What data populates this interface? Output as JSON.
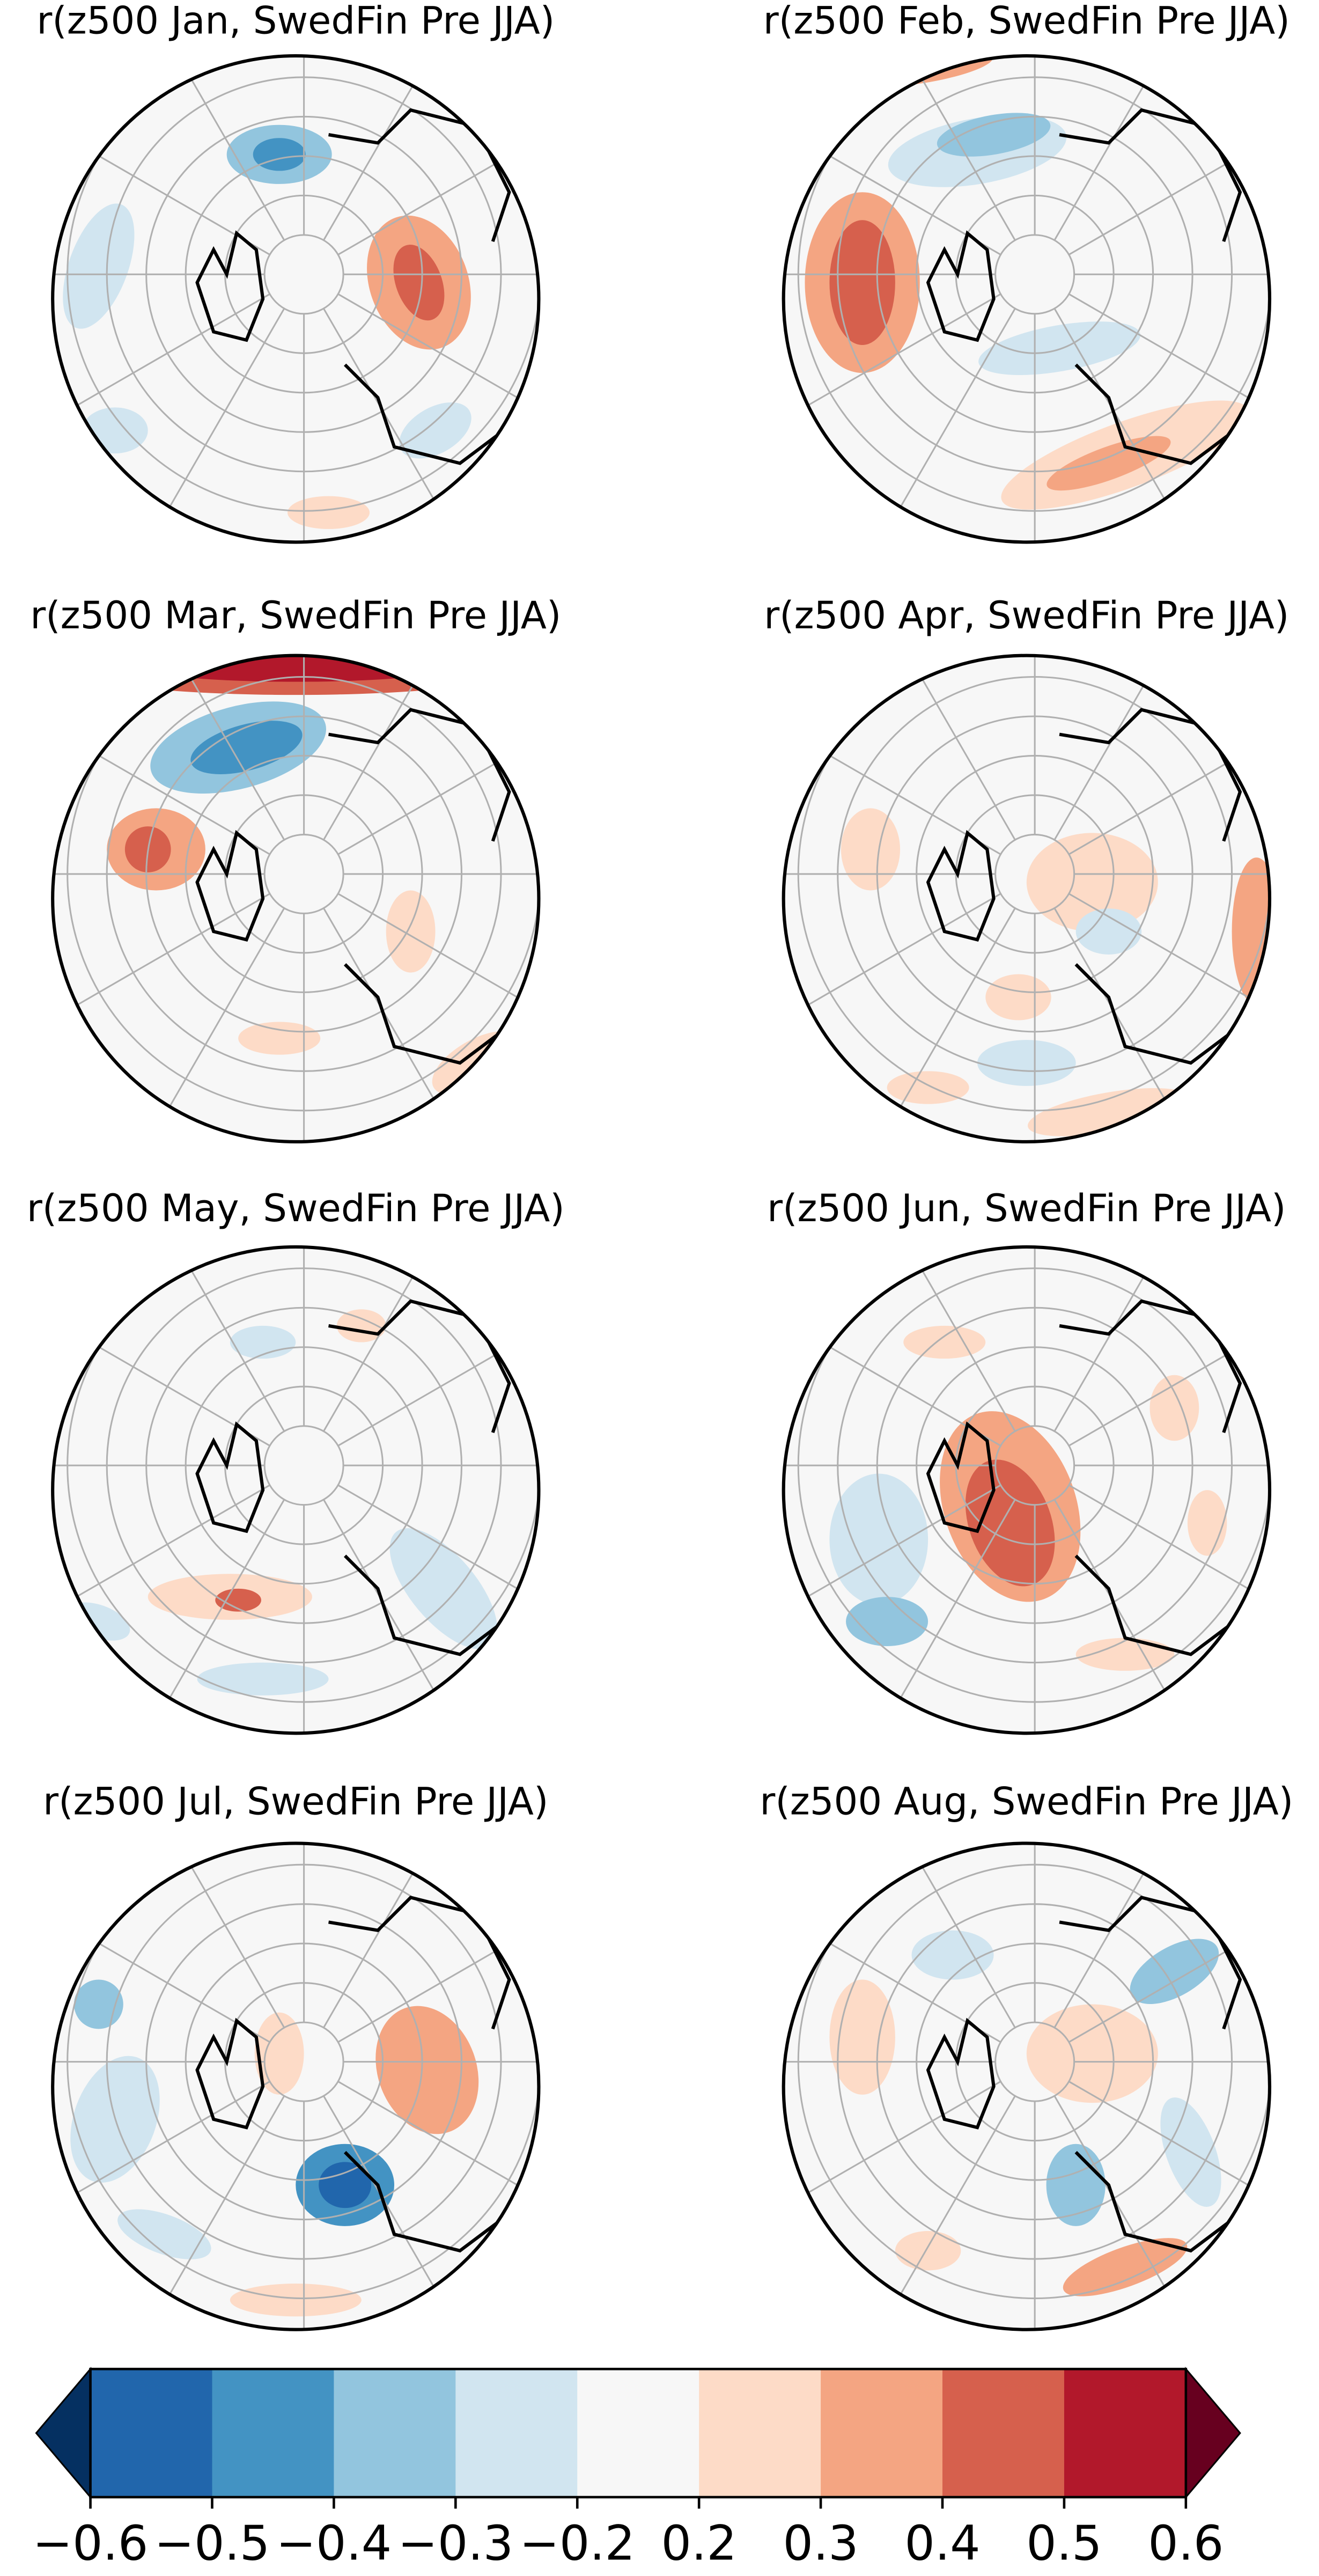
{
  "chart_data": [
    {
      "type": "map",
      "title": "r(z500 Jan, SwedFin Pre JJA)"
    },
    {
      "type": "map",
      "title": "r(z500 Feb, SwedFin Pre JJA)"
    },
    {
      "type": "map",
      "title": "r(z500 Mar, SwedFin Pre JJA)"
    },
    {
      "type": "map",
      "title": "r(z500 Apr, SwedFin Pre JJA)"
    },
    {
      "type": "map",
      "title": "r(z500 May, SwedFin Pre JJA)"
    },
    {
      "type": "map",
      "title": "r(z500 Jun, SwedFin Pre JJA)"
    },
    {
      "type": "map",
      "title": "r(z500 Jul, SwedFin Pre JJA)"
    },
    {
      "type": "map",
      "title": "r(z500 Aug, SwedFin Pre JJA)"
    },
    {
      "type": "colorbar",
      "xticks": [
        {
          "value": -0.6,
          "label": "−0.6"
        },
        {
          "value": -0.5,
          "label": "−0.5"
        },
        {
          "value": -0.4,
          "label": "−0.4"
        },
        {
          "value": -0.3,
          "label": "−0.3"
        },
        {
          "value": -0.2,
          "label": "−0.2"
        },
        0.2,
        0.3,
        0.4,
        0.5,
        0.6
      ],
      "colors": [
        "#2166ac",
        "#4393c3",
        "#92c5de",
        "#d1e5f0",
        "#f7f7f7",
        "#fddbc7",
        "#f4a582",
        "#d6604d",
        "#b2182b"
      ],
      "under_color": "#053061",
      "over_color": "#67001f"
    }
  ]
}
